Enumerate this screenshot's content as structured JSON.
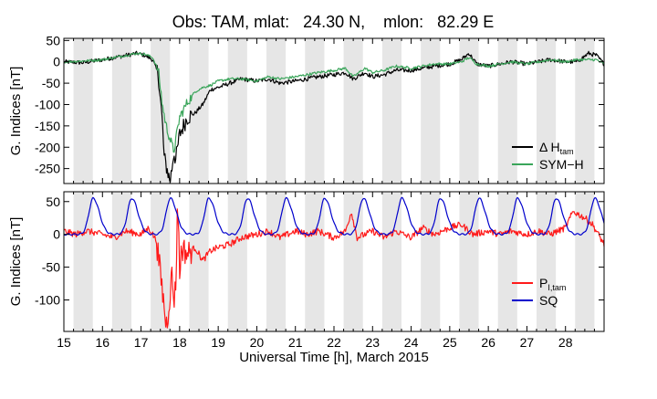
{
  "chart_data": [
    {
      "type": "line",
      "title": "Obs: TAM, mlat:   24.30 N,    mlon:   82.29 E",
      "ylabel": "G. Indices [nT]",
      "xlim": [
        15,
        29
      ],
      "ylim": [
        -285,
        55
      ],
      "yticks": [
        50,
        0,
        -50,
        -100,
        -150,
        -200,
        -250
      ],
      "grid": false,
      "shaded_bands": "alternate half-day intervals shaded grey",
      "legend_position": "bottom-right",
      "series": [
        {
          "name": "Δ H",
          "name_sub": "tam",
          "color": "#000000",
          "x": [
            15.0,
            15.5,
            16.0,
            16.3,
            16.6,
            16.9,
            17.1,
            17.3,
            17.45,
            17.55,
            17.6,
            17.7,
            17.75,
            17.8,
            17.85,
            17.9,
            18.0,
            18.2,
            18.4,
            18.6,
            18.8,
            19.0,
            19.3,
            19.6,
            20.0,
            20.3,
            20.6,
            21.0,
            21.3,
            21.6,
            22.0,
            22.3,
            22.5,
            22.8,
            23.0,
            23.3,
            23.6,
            24.0,
            24.3,
            24.6,
            25.0,
            25.3,
            25.5,
            25.7,
            26.0,
            26.3,
            26.6,
            27.0,
            27.3,
            27.6,
            28.0,
            28.3,
            28.6,
            28.8,
            29.0
          ],
          "y": [
            0,
            -2,
            5,
            10,
            15,
            20,
            15,
            5,
            -30,
            -140,
            -225,
            -260,
            -280,
            -250,
            -210,
            -230,
            -170,
            -130,
            -120,
            -100,
            -65,
            -60,
            -50,
            -40,
            -45,
            -40,
            -50,
            -45,
            -40,
            -35,
            -30,
            -25,
            -40,
            -25,
            -35,
            -30,
            -20,
            -20,
            -15,
            -10,
            -5,
            5,
            20,
            -5,
            -10,
            -5,
            0,
            -5,
            0,
            5,
            0,
            0,
            20,
            15,
            -5
          ]
        },
        {
          "name": "SYM−H",
          "color": "#3aa55a",
          "x": [
            15.0,
            15.5,
            16.0,
            16.3,
            16.6,
            16.9,
            17.1,
            17.3,
            17.45,
            17.55,
            17.65,
            17.75,
            17.85,
            18.0,
            18.2,
            18.4,
            18.6,
            18.8,
            19.0,
            19.3,
            19.6,
            20.0,
            20.3,
            20.6,
            21.0,
            21.3,
            21.6,
            22.0,
            22.3,
            22.5,
            22.8,
            23.0,
            23.3,
            23.6,
            24.0,
            24.3,
            24.6,
            25.0,
            25.3,
            25.5,
            25.7,
            26.0,
            26.3,
            26.6,
            27.0,
            27.3,
            27.6,
            28.0,
            28.3,
            28.6,
            28.8,
            29.0
          ],
          "y": [
            0,
            2,
            5,
            10,
            15,
            20,
            18,
            10,
            -20,
            -100,
            -150,
            -180,
            -210,
            -130,
            -95,
            -70,
            -60,
            -55,
            -45,
            -40,
            -40,
            -45,
            -35,
            -40,
            -35,
            -30,
            -25,
            -20,
            -15,
            -35,
            -15,
            -25,
            -20,
            -10,
            -15,
            -10,
            -5,
            -5,
            0,
            10,
            -5,
            -10,
            -5,
            0,
            -5,
            0,
            5,
            0,
            5,
            5,
            5,
            -5
          ]
        }
      ]
    },
    {
      "type": "line",
      "xlabel": "Universal Time [h], March 2015",
      "ylabel": "G. Indices [nT]",
      "xlim": [
        15,
        29
      ],
      "ylim": [
        -148,
        65
      ],
      "xticks": [
        15,
        16,
        17,
        18,
        19,
        20,
        21,
        22,
        23,
        24,
        25,
        26,
        27,
        28
      ],
      "yticks": [
        50,
        0,
        -50,
        -100
      ],
      "grid": false,
      "shaded_bands": "alternate half-day intervals shaded grey",
      "legend_position": "bottom-right",
      "series": [
        {
          "name": "P",
          "name_sub": "I,tam",
          "color": "#ff1a1a",
          "x": [
            15.0,
            15.3,
            15.6,
            16.0,
            16.3,
            16.6,
            17.0,
            17.2,
            17.4,
            17.5,
            17.6,
            17.65,
            17.7,
            17.75,
            17.8,
            17.85,
            17.9,
            17.95,
            18.0,
            18.05,
            18.2,
            18.4,
            18.6,
            18.8,
            19.0,
            19.3,
            19.6,
            20.0,
            20.3,
            20.6,
            21.0,
            21.3,
            21.6,
            22.0,
            22.3,
            22.45,
            22.6,
            23.0,
            23.3,
            23.6,
            24.0,
            24.3,
            24.6,
            25.0,
            25.3,
            25.6,
            26.0,
            26.3,
            26.6,
            27.0,
            27.3,
            27.6,
            28.0,
            28.2,
            28.5,
            28.7,
            28.85,
            29.0
          ],
          "y": [
            5,
            0,
            5,
            0,
            -5,
            5,
            0,
            10,
            -10,
            -60,
            -110,
            -140,
            -120,
            -90,
            -60,
            -100,
            -80,
            60,
            -60,
            -20,
            -30,
            -20,
            -40,
            -25,
            -20,
            -15,
            -5,
            0,
            5,
            -5,
            5,
            0,
            5,
            -5,
            5,
            35,
            -5,
            5,
            -5,
            5,
            -5,
            10,
            0,
            10,
            15,
            0,
            5,
            0,
            5,
            0,
            5,
            0,
            10,
            35,
            25,
            15,
            0,
            -15
          ]
        },
        {
          "name": "SQ",
          "color": "#0000cc",
          "peaks": [
            15.76,
            16.76,
            17.76,
            18.76,
            19.76,
            20.76,
            21.76,
            22.76,
            23.76,
            24.76,
            25.76,
            26.76,
            27.76,
            28.76
          ],
          "peak_value": 55,
          "baseline_value": 0
        }
      ]
    }
  ],
  "legend": {
    "top": [
      {
        "label": "Δ H",
        "sub": "tam"
      },
      {
        "label": "SYM−H",
        "sub": ""
      }
    ],
    "bottom": [
      {
        "label": "P",
        "sub": "I,tam"
      },
      {
        "label": "SQ",
        "sub": ""
      }
    ]
  }
}
